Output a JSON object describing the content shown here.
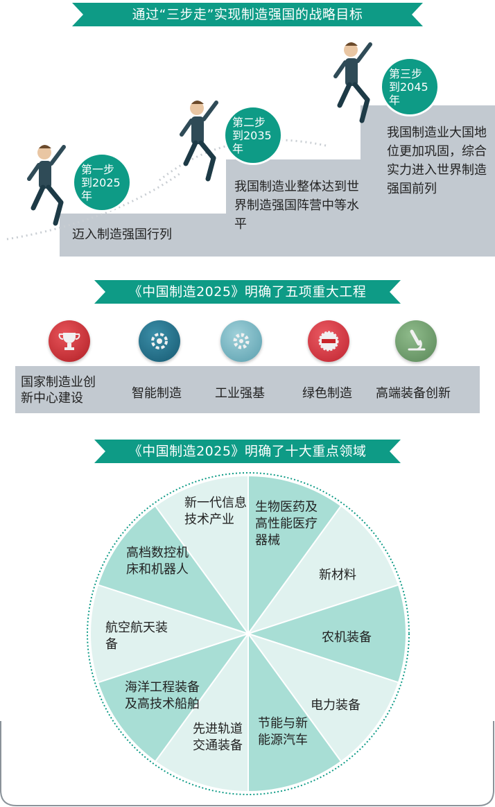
{
  "banners": {
    "b1": "通过“三步走”实现制造强国的战略目标",
    "b2": "《中国制造2025》明确了五项重大工程",
    "b3": "《中国制造2025》明确了十大重点领域"
  },
  "steps": [
    {
      "line1": "第一步",
      "line2": "到2025年",
      "desc": "迈入制造强国行列"
    },
    {
      "line1": "第二步",
      "line2": "到2035年",
      "desc": "我国制造业整体达到世界制造强国阵营中等水平"
    },
    {
      "line1": "第三步",
      "line2": "到2045年",
      "desc": "我国制造业大国地位更加巩固，综合实力进入世界制造强国前列"
    }
  ],
  "projects": [
    {
      "label": "国家制造业创新中心建设",
      "icon": "trophy-icon",
      "color": "#c8262b"
    },
    {
      "label": "智能制造",
      "icon": "smart-gear-icon",
      "color": "#1d6e88"
    },
    {
      "label": "工业强基",
      "icon": "gear-icon",
      "color": "#6fb1be"
    },
    {
      "label": "绿色制造",
      "icon": "green-badge-icon",
      "color": "#d3303a"
    },
    {
      "label": "高端装备创新",
      "icon": "microscope-icon",
      "color": "#6c9a6a"
    }
  ],
  "fields": [
    "新一代信息技术产业",
    "生物医药及高性能医疗器械",
    "新材料",
    "农机装备",
    "电力装备",
    "节能与新能源汽车",
    "先进轨道交通装备",
    "海洋工程装备及高技术船舶",
    "航空航天装备",
    "高档数控机床和机器人"
  ],
  "colors": {
    "teal": "#0e9b86",
    "sector_dark": "#a8ded5",
    "sector_light": "#e0f2ef",
    "gray": "#c2c9d0"
  }
}
